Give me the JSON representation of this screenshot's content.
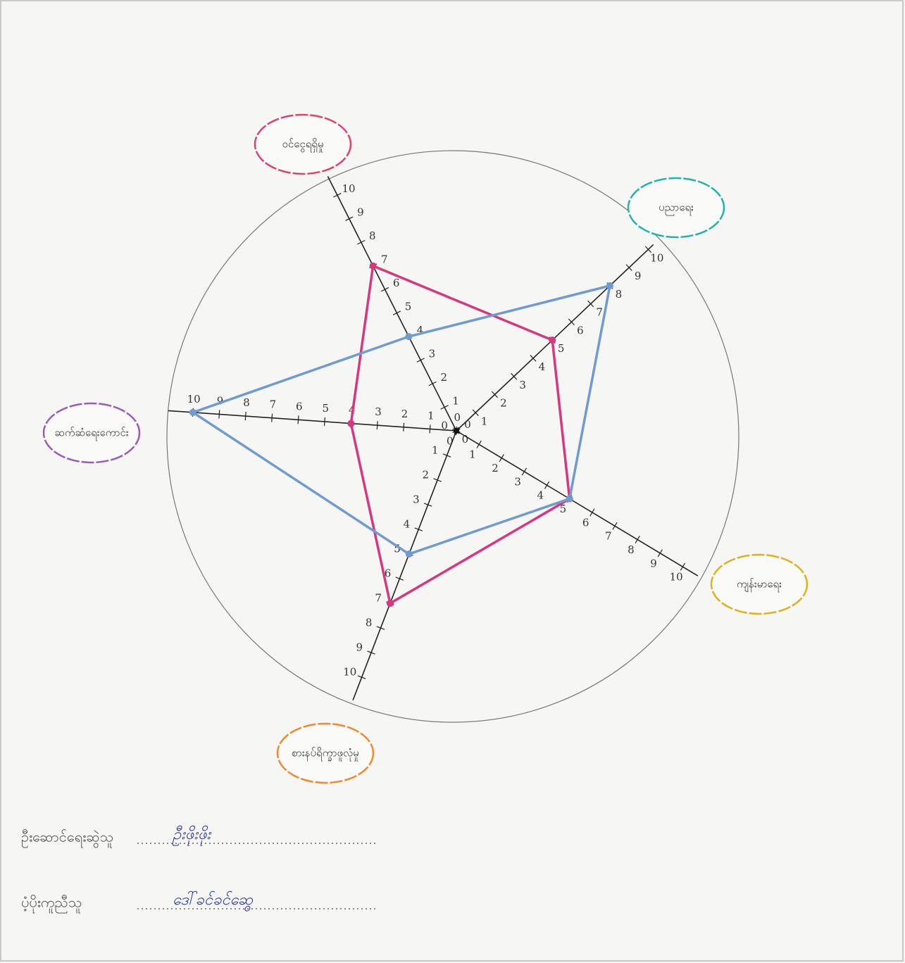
{
  "chart_data": {
    "type": "radar",
    "categories": [
      "ဝင်ငွေရရှိမှု",
      "ပညာရေး",
      "ကျန်းမာရေး",
      "စားနပ်ရိက္ခာဖူလုံမှု",
      "ဆက်ဆံရေးကောင်း"
    ],
    "rlim": [
      0,
      10
    ],
    "rticks": [
      0,
      1,
      2,
      3,
      4,
      5,
      6,
      7,
      8,
      9,
      10
    ],
    "series": [
      {
        "color": "#d6377f",
        "values": [
          7,
          5,
          5,
          7,
          4
        ]
      },
      {
        "color": "#6f9bd1",
        "values": [
          4,
          8,
          5,
          5,
          10
        ]
      }
    ]
  },
  "footer": {
    "lines": [
      {
        "label": "ဦးဆောင်ရေးဆွဲသူ",
        "name": "ဦးဖိုးဖိုး"
      },
      {
        "label": "ပံ့ပိုးကူညီသူ",
        "name": "ဒေါ်ခင်ခင်ဆွေ"
      }
    ]
  }
}
